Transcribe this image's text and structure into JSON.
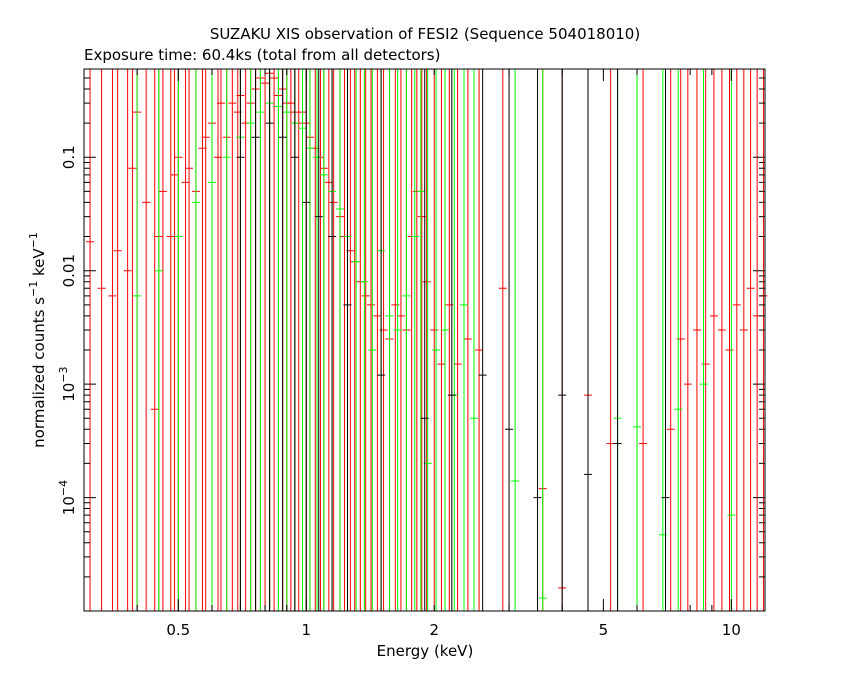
{
  "chart_data": {
    "type": "scatter",
    "title": "SUZAKU XIS observation of FESI2 (Sequence 504018010)",
    "subtitle": "Exposure time: 60.4ks (total from all detectors)",
    "xlabel": "Energy (keV)",
    "ylabel_main": "normalized counts s",
    "ylabel_exp1": "−1",
    "ylabel_mid": " keV",
    "ylabel_exp2": "−1",
    "x_scale": "log",
    "y_scale": "log",
    "xlim": [
      0.3,
      12
    ],
    "ylim": [
      1e-05,
      0.6
    ],
    "x_ticks": [
      {
        "value": 0.5,
        "label": "0.5"
      },
      {
        "value": 1,
        "label": "1"
      },
      {
        "value": 2,
        "label": "2"
      },
      {
        "value": 5,
        "label": "5"
      },
      {
        "value": 10,
        "label": "10"
      }
    ],
    "y_ticks": [
      {
        "value": 0.1,
        "label": "0.1",
        "exp": ""
      },
      {
        "value": 0.01,
        "label": "0.01",
        "exp": ""
      },
      {
        "value": 0.001,
        "label": "10",
        "exp": "−3"
      },
      {
        "value": 0.0001,
        "label": "10",
        "exp": "−4"
      }
    ],
    "grid": false,
    "series": [
      {
        "color": "#ff0000",
        "points": [
          [
            0.31,
            0.018,
            0.02
          ],
          [
            0.33,
            0.007,
            0.03
          ],
          [
            0.35,
            0.006,
            0.04
          ],
          [
            0.36,
            0.015,
            0.03
          ],
          [
            0.38,
            0.01,
            0.04
          ],
          [
            0.39,
            0.08,
            0.1
          ],
          [
            0.4,
            0.25,
            0.2
          ],
          [
            0.42,
            0.04,
            0.06
          ],
          [
            0.44,
            0.0006,
            0.05
          ],
          [
            0.45,
            0.02,
            0.05
          ],
          [
            0.46,
            0.05,
            0.08
          ],
          [
            0.48,
            0.02,
            0.06
          ],
          [
            0.49,
            0.07,
            0.1
          ],
          [
            0.5,
            0.1,
            0.15
          ],
          [
            0.52,
            0.06,
            0.1
          ],
          [
            0.53,
            0.08,
            0.2
          ],
          [
            0.55,
            0.05,
            0.15
          ],
          [
            0.57,
            0.12,
            0.2
          ],
          [
            0.58,
            0.15,
            0.2
          ],
          [
            0.6,
            0.2,
            0.25
          ],
          [
            0.62,
            0.1,
            0.3
          ],
          [
            0.63,
            0.3,
            0.3
          ],
          [
            0.65,
            0.15,
            0.3
          ],
          [
            0.67,
            0.3,
            0.3
          ],
          [
            0.69,
            0.25,
            0.35
          ],
          [
            0.7,
            0.35,
            0.3
          ],
          [
            0.72,
            0.2,
            0.35
          ],
          [
            0.74,
            0.3,
            0.3
          ],
          [
            0.76,
            0.4,
            0.3
          ],
          [
            0.78,
            0.5,
            0.3
          ],
          [
            0.8,
            0.45,
            0.3
          ],
          [
            0.82,
            0.55,
            0.3
          ],
          [
            0.84,
            0.5,
            0.3
          ],
          [
            0.86,
            0.35,
            0.3
          ],
          [
            0.88,
            0.4,
            0.3
          ],
          [
            0.9,
            0.3,
            0.3
          ],
          [
            0.92,
            0.3,
            0.3
          ],
          [
            0.94,
            0.25,
            0.35
          ],
          [
            0.96,
            0.2,
            0.3
          ],
          [
            0.98,
            0.25,
            0.3
          ],
          [
            1.0,
            0.2,
            0.3
          ],
          [
            1.02,
            0.15,
            0.3
          ],
          [
            1.05,
            0.12,
            0.3
          ],
          [
            1.08,
            0.1,
            0.3
          ],
          [
            1.1,
            0.08,
            0.3
          ],
          [
            1.13,
            0.06,
            0.3
          ],
          [
            1.16,
            0.04,
            0.3
          ],
          [
            1.2,
            0.03,
            0.3
          ],
          [
            1.23,
            0.02,
            0.3
          ],
          [
            1.27,
            0.015,
            0.3
          ],
          [
            1.3,
            0.012,
            0.3
          ],
          [
            1.34,
            0.008,
            0.3
          ],
          [
            1.38,
            0.006,
            0.3
          ],
          [
            1.42,
            0.005,
            0.3
          ],
          [
            1.47,
            0.004,
            0.3
          ],
          [
            1.52,
            0.003,
            0.3
          ],
          [
            1.57,
            0.0025,
            0.3
          ],
          [
            1.62,
            0.005,
            0.3
          ],
          [
            1.67,
            0.004,
            0.3
          ],
          [
            1.72,
            0.003,
            0.3
          ],
          [
            1.77,
            0.02,
            0.15
          ],
          [
            1.82,
            0.05,
            0.12
          ],
          [
            1.87,
            0.03,
            0.12
          ],
          [
            1.92,
            0.008,
            0.3
          ],
          [
            2.0,
            0.003,
            0.4
          ],
          [
            2.08,
            0.0015,
            0.45
          ],
          [
            2.17,
            0.005,
            0.45
          ],
          [
            2.27,
            0.0015,
            0.45
          ],
          [
            2.4,
            0.0025,
            0.5
          ],
          [
            2.55,
            0.002,
            0.5
          ],
          [
            2.9,
            0.007,
            0.15
          ],
          [
            3.6,
            0.00012,
            0.6
          ],
          [
            4.0,
            1.6e-05,
            0.6
          ],
          [
            4.6,
            0.0008,
            0.6
          ],
          [
            5.2,
            0.0003,
            0.6
          ],
          [
            6.2,
            0.0003,
            0.6
          ],
          [
            7.2,
            0.0004,
            0.6
          ],
          [
            7.6,
            0.0025,
            0.6
          ],
          [
            7.9,
            0.001,
            0.6
          ],
          [
            8.3,
            0.003,
            0.6
          ],
          [
            8.7,
            0.0015,
            0.6
          ],
          [
            9.1,
            0.004,
            0.6
          ],
          [
            9.5,
            0.003,
            0.6
          ],
          [
            9.9,
            0.002,
            0.6
          ],
          [
            10.3,
            0.005,
            0.6
          ],
          [
            10.7,
            0.003,
            0.6
          ],
          [
            11.1,
            0.007,
            0.6
          ],
          [
            11.5,
            0.004,
            0.6
          ],
          [
            11.9,
            0.006,
            0.6
          ]
        ]
      },
      {
        "color": "#00ff00",
        "points": [
          [
            0.4,
            0.006,
            0.2
          ],
          [
            0.45,
            0.01,
            0.25
          ],
          [
            0.5,
            0.02,
            0.25
          ],
          [
            0.55,
            0.04,
            0.25
          ],
          [
            0.6,
            0.06,
            0.3
          ],
          [
            0.65,
            0.1,
            0.3
          ],
          [
            0.7,
            0.15,
            0.3
          ],
          [
            0.74,
            0.2,
            0.3
          ],
          [
            0.78,
            0.25,
            0.3
          ],
          [
            0.82,
            0.3,
            0.3
          ],
          [
            0.86,
            0.28,
            0.3
          ],
          [
            0.9,
            0.25,
            0.3
          ],
          [
            0.94,
            0.2,
            0.3
          ],
          [
            0.98,
            0.18,
            0.3
          ],
          [
            1.02,
            0.12,
            0.3
          ],
          [
            1.06,
            0.1,
            0.3
          ],
          [
            1.1,
            0.07,
            0.3
          ],
          [
            1.15,
            0.05,
            0.3
          ],
          [
            1.2,
            0.035,
            0.3
          ],
          [
            1.25,
            0.02,
            0.3
          ],
          [
            1.31,
            0.012,
            0.3
          ],
          [
            1.37,
            0.008,
            0.3
          ],
          [
            1.43,
            0.002,
            0.35
          ],
          [
            1.5,
            0.015,
            0.3
          ],
          [
            1.57,
            0.004,
            0.35
          ],
          [
            1.64,
            0.003,
            0.35
          ],
          [
            1.72,
            0.006,
            0.3
          ],
          [
            1.8,
            0.02,
            0.2
          ],
          [
            1.86,
            0.05,
            0.15
          ],
          [
            1.93,
            0.0002,
            0.5
          ],
          [
            2.02,
            0.002,
            0.4
          ],
          [
            2.12,
            0.003,
            0.4
          ],
          [
            2.23,
            0.0008,
            0.45
          ],
          [
            2.35,
            0.005,
            0.4
          ],
          [
            2.48,
            0.0005,
            0.45
          ],
          [
            3.1,
            0.00014,
            0.5
          ],
          [
            3.6,
            1.3e-05,
            0.5
          ],
          [
            5.4,
            0.0005,
            0.5
          ],
          [
            6.0,
            0.00042,
            0.5
          ],
          [
            6.9,
            4.7e-05,
            0.5
          ],
          [
            7.5,
            0.0006,
            0.5
          ],
          [
            8.6,
            0.001,
            0.5
          ],
          [
            10.0,
            7e-05,
            0.5
          ]
        ]
      },
      {
        "color": "#000000",
        "points": [
          [
            0.7,
            0.1,
            0.25
          ],
          [
            0.76,
            0.15,
            0.25
          ],
          [
            0.82,
            0.2,
            0.25
          ],
          [
            0.88,
            0.15,
            0.25
          ],
          [
            0.94,
            0.1,
            0.25
          ],
          [
            1.0,
            0.04,
            0.25
          ],
          [
            1.07,
            0.03,
            0.25
          ],
          [
            1.15,
            0.02,
            0.3
          ],
          [
            1.25,
            0.005,
            0.3
          ],
          [
            1.5,
            0.0012,
            0.35
          ],
          [
            1.9,
            0.0005,
            0.45
          ],
          [
            2.2,
            0.0008,
            0.45
          ],
          [
            2.6,
            0.0012,
            0.45
          ],
          [
            3.0,
            0.0004,
            0.5
          ],
          [
            3.5,
            0.0001,
            0.5
          ],
          [
            4.0,
            0.0008,
            0.5
          ],
          [
            4.6,
            0.00016,
            0.5
          ],
          [
            5.4,
            0.0003,
            0.5
          ],
          [
            7.0,
            0.0001,
            0.5
          ]
        ]
      }
    ]
  }
}
